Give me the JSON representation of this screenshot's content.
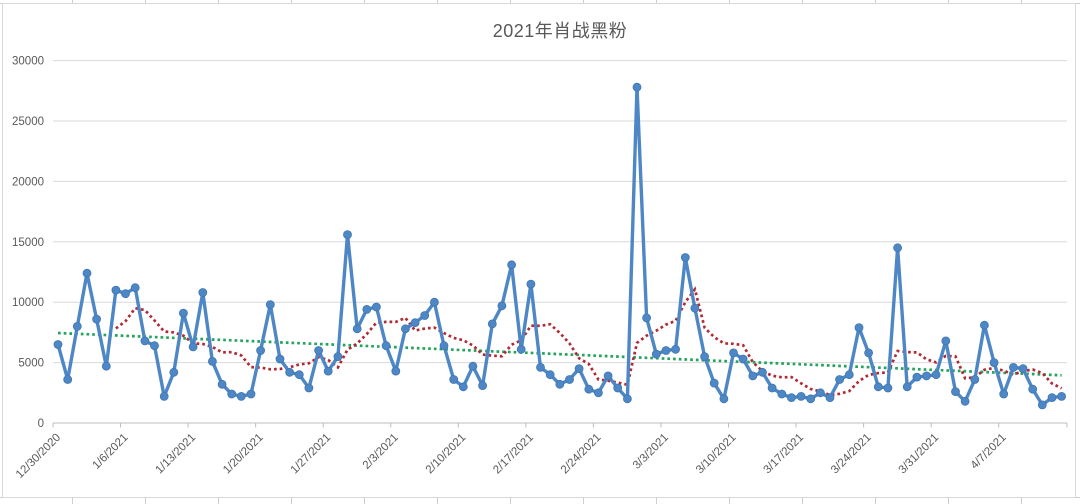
{
  "sheet": {
    "grid_color": "#cdcdcd"
  },
  "chart": {
    "background": "#ffffff",
    "frame_border_color": "#d9d9d9",
    "gridline_color": "#d9d9d9",
    "axis_line_color": "#bfbfbf",
    "axis_text_color": "#595959"
  },
  "chart_data": {
    "type": "line",
    "title": "2021年肖战黑粉",
    "x_frequency": "daily",
    "x_first_date": "12/30/2020",
    "x_last_date": "4/13/2021",
    "x_label_interval_days": 7,
    "x_tick_labels": [
      "12/30/2020",
      "1/6/2021",
      "1/13/2021",
      "1/20/2021",
      "1/27/2021",
      "2/3/2021",
      "2/10/2021",
      "2/17/2021",
      "2/24/2021",
      "3/3/2021",
      "3/10/2021",
      "3/17/2021",
      "3/24/2021",
      "3/31/2021",
      "4/7/2021"
    ],
    "y_tick_labels": [
      "0",
      "5000",
      "10000",
      "15000",
      "20000",
      "25000",
      "30000"
    ],
    "ylim": [
      0,
      30000
    ],
    "y_tick_step": 5000,
    "grid": "horizontal",
    "legend": "none",
    "series": [
      {
        "name": "daily count",
        "style": "solid line with round markers",
        "color": "#4e87c5",
        "values": [
          6500,
          3600,
          8000,
          12400,
          8600,
          4700,
          11000,
          10700,
          11200,
          6800,
          6400,
          2200,
          4200,
          9100,
          6300,
          10800,
          5100,
          3200,
          2400,
          2200,
          2400,
          6000,
          9800,
          5300,
          4200,
          4000,
          2900,
          6000,
          4300,
          5500,
          15600,
          7800,
          9400,
          9600,
          6400,
          4300,
          7800,
          8300,
          8900,
          10000,
          6400,
          3600,
          3000,
          4700,
          3100,
          8200,
          9700,
          13100,
          6100,
          11500,
          4600,
          4000,
          3200,
          3600,
          4500,
          2800,
          2500,
          3900,
          2900,
          2000,
          27800,
          8700,
          5700,
          6000,
          6100,
          13700,
          9500,
          5500,
          3300,
          2000,
          5800,
          5300,
          3900,
          4200,
          2900,
          2400,
          2100,
          2200,
          2000,
          2500,
          2100,
          3600,
          4000,
          7900,
          5800,
          3000,
          2900,
          14500,
          3000,
          3800,
          3900,
          4000,
          6800,
          2600,
          1800,
          3600,
          8100,
          5000,
          2400,
          4600,
          4500,
          2800,
          1500,
          2100,
          2200
        ]
      },
      {
        "name": "7-day moving average",
        "style": "dotted",
        "color": "#b02a33",
        "derived_from": "daily count",
        "window": 7
      },
      {
        "name": "linear trendline",
        "style": "dotted",
        "color": "#23a45d",
        "start_value": 7450,
        "end_value": 3950
      }
    ]
  }
}
